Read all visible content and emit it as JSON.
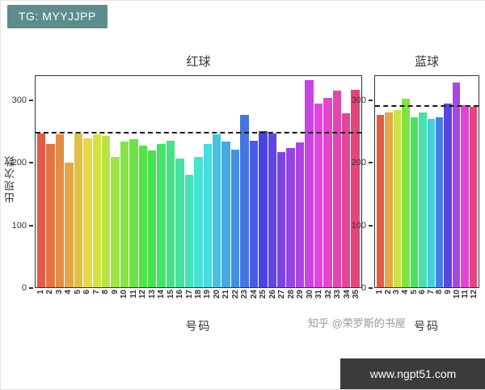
{
  "badge": {
    "text": "TG: MYYJJPP",
    "bg": "#5d8c8c"
  },
  "watermark": {
    "zhihu": "知乎 @荣罗斯的书屋",
    "url": "www.ngpt51.com",
    "url_bg": "#3b3b3b"
  },
  "colors": {
    "axis": "#333333",
    "mean_line": "#1a1a1a",
    "panel_border": "#333333"
  },
  "chart_data": [
    {
      "type": "bar",
      "title": "红球",
      "xlabel": "号码",
      "ylabel": "出现次数",
      "categories": [
        "1",
        "2",
        "3",
        "4",
        "5",
        "6",
        "7",
        "8",
        "9",
        "10",
        "11",
        "12",
        "13",
        "14",
        "15",
        "16",
        "17",
        "18",
        "19",
        "20",
        "21",
        "22",
        "23",
        "24",
        "25",
        "26",
        "27",
        "28",
        "29",
        "30",
        "31",
        "32",
        "33",
        "34",
        "35"
      ],
      "values": [
        248,
        230,
        246,
        200,
        247,
        240,
        246,
        244,
        210,
        235,
        238,
        228,
        220,
        230,
        236,
        207,
        181,
        210,
        231,
        246,
        234,
        221,
        278,
        236,
        251,
        247,
        218,
        224,
        233,
        333,
        296,
        305,
        317,
        280,
        318
      ],
      "ylim": [
        0,
        340
      ],
      "yticks": [
        0,
        100,
        200,
        300
      ],
      "mean_line": 247,
      "legend": "none",
      "grid": "off",
      "palette": {
        "type": "hsl-rainbow",
        "hue_start": 8,
        "hue_end": 338,
        "saturation": 74,
        "lightness": 58
      }
    },
    {
      "type": "bar",
      "title": "蓝球",
      "xlabel": "号码",
      "ylabel": "",
      "categories": [
        "1",
        "2",
        "3",
        "4",
        "5",
        "6",
        "7",
        "8",
        "9",
        "10",
        "11",
        "12"
      ],
      "values": [
        277,
        281,
        285,
        304,
        274,
        282,
        271,
        274,
        296,
        330,
        293,
        291
      ],
      "ylim": [
        0,
        340
      ],
      "yticks": [
        0,
        100,
        200,
        300
      ],
      "mean_line": 290,
      "legend": "none",
      "grid": "off",
      "palette": {
        "type": "hsl-rainbow",
        "hue_start": 8,
        "hue_end": 338,
        "saturation": 74,
        "lightness": 58
      }
    }
  ]
}
